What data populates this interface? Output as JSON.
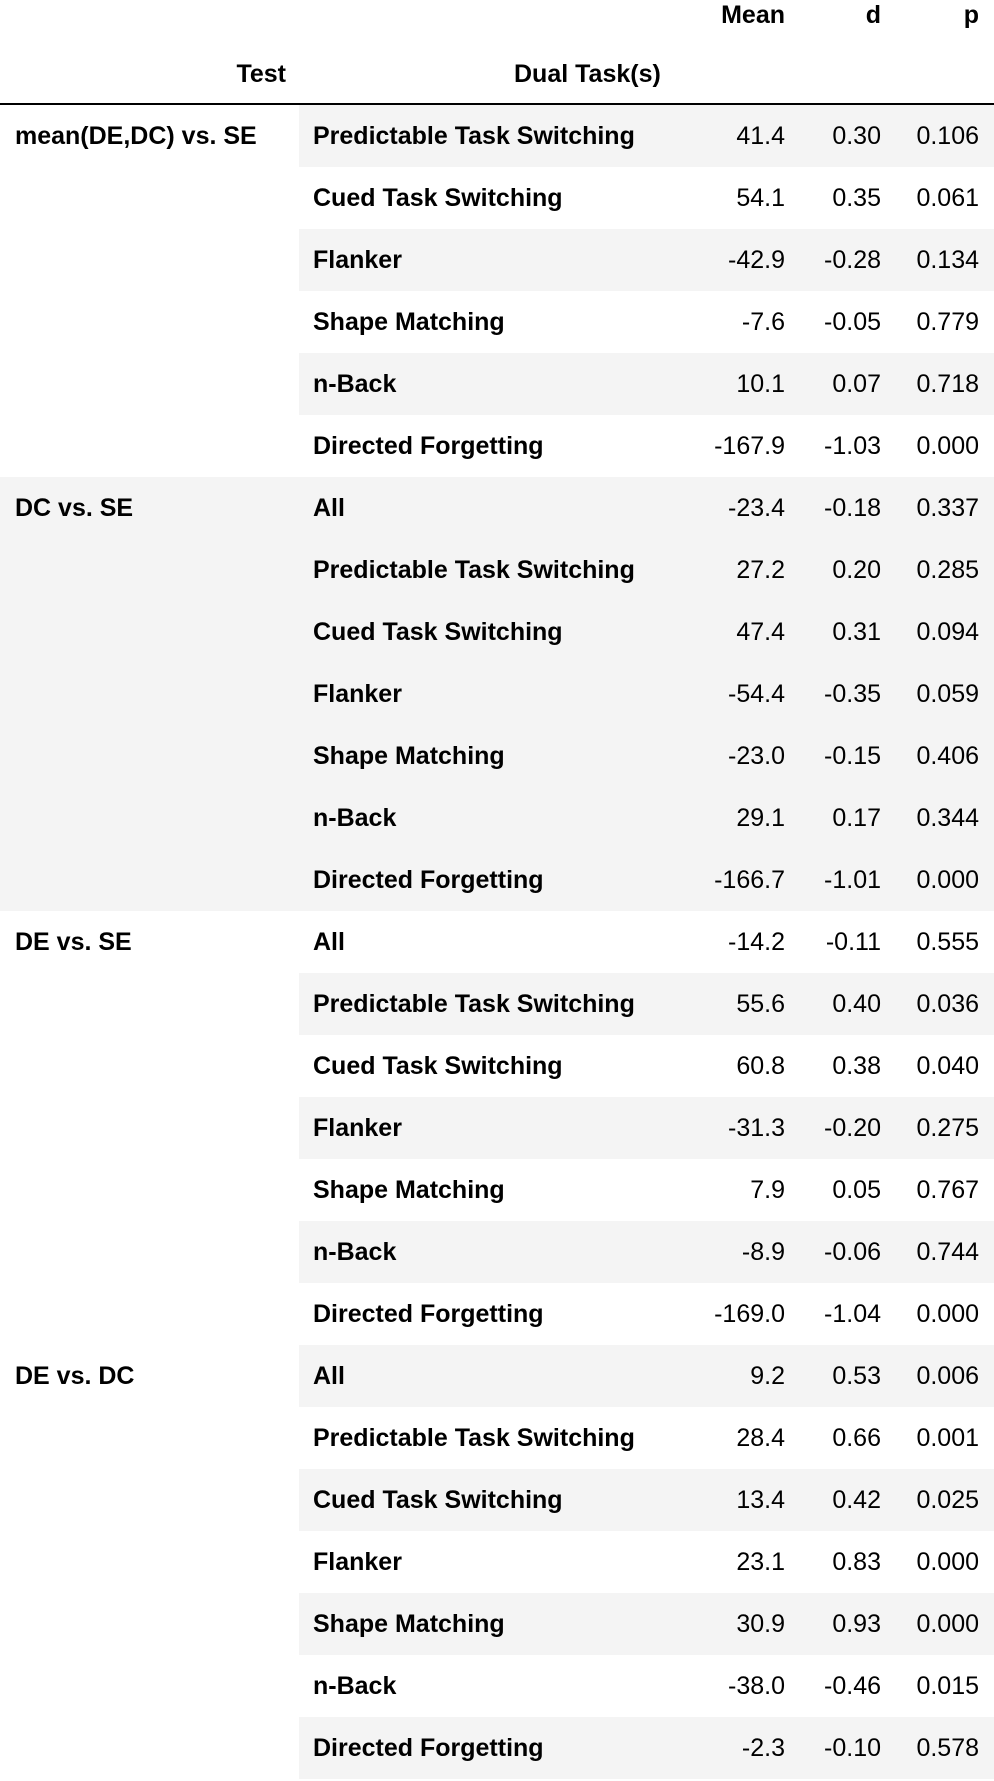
{
  "headers": {
    "mean": "Mean",
    "d": "d",
    "p": "p",
    "test": "Test",
    "dual": "Dual Task(s)"
  },
  "groups": [
    {
      "label": "mean(DE,DC) vs. SE",
      "rows": [
        {
          "task": "Predictable Task Switching",
          "mean": "41.4",
          "d": "0.30",
          "p": "0.106"
        },
        {
          "task": "Cued Task Switching",
          "mean": "54.1",
          "d": "0.35",
          "p": "0.061"
        },
        {
          "task": "Flanker",
          "mean": "-42.9",
          "d": "-0.28",
          "p": "0.134"
        },
        {
          "task": "Shape Matching",
          "mean": "-7.6",
          "d": "-0.05",
          "p": "0.779"
        },
        {
          "task": "n-Back",
          "mean": "10.1",
          "d": "0.07",
          "p": "0.718"
        },
        {
          "task": "Directed Forgetting",
          "mean": "-167.9",
          "d": "-1.03",
          "p": "0.000"
        }
      ]
    },
    {
      "label": "DC vs. SE",
      "rows": [
        {
          "task": "All",
          "mean": "-23.4",
          "d": "-0.18",
          "p": "0.337"
        },
        {
          "task": "Predictable Task Switching",
          "mean": "27.2",
          "d": "0.20",
          "p": "0.285"
        },
        {
          "task": "Cued Task Switching",
          "mean": "47.4",
          "d": "0.31",
          "p": "0.094"
        },
        {
          "task": "Flanker",
          "mean": "-54.4",
          "d": "-0.35",
          "p": "0.059"
        },
        {
          "task": "Shape Matching",
          "mean": "-23.0",
          "d": "-0.15",
          "p": "0.406"
        },
        {
          "task": "n-Back",
          "mean": "29.1",
          "d": "0.17",
          "p": "0.344"
        },
        {
          "task": "Directed Forgetting",
          "mean": "-166.7",
          "d": "-1.01",
          "p": "0.000"
        }
      ]
    },
    {
      "label": "DE vs. SE",
      "rows": [
        {
          "task": "All",
          "mean": "-14.2",
          "d": "-0.11",
          "p": "0.555"
        },
        {
          "task": "Predictable Task Switching",
          "mean": "55.6",
          "d": "0.40",
          "p": "0.036"
        },
        {
          "task": "Cued Task Switching",
          "mean": "60.8",
          "d": "0.38",
          "p": "0.040"
        },
        {
          "task": "Flanker",
          "mean": "-31.3",
          "d": "-0.20",
          "p": "0.275"
        },
        {
          "task": "Shape Matching",
          "mean": "7.9",
          "d": "0.05",
          "p": "0.767"
        },
        {
          "task": "n-Back",
          "mean": "-8.9",
          "d": "-0.06",
          "p": "0.744"
        },
        {
          "task": "Directed Forgetting",
          "mean": "-169.0",
          "d": "-1.04",
          "p": "0.000"
        }
      ]
    },
    {
      "label": "DE vs. DC",
      "rows": [
        {
          "task": "All",
          "mean": "9.2",
          "d": "0.53",
          "p": "0.006"
        },
        {
          "task": "Predictable Task Switching",
          "mean": "28.4",
          "d": "0.66",
          "p": "0.001"
        },
        {
          "task": "Cued Task Switching",
          "mean": "13.4",
          "d": "0.42",
          "p": "0.025"
        },
        {
          "task": "Flanker",
          "mean": "23.1",
          "d": "0.83",
          "p": "0.000"
        },
        {
          "task": "Shape Matching",
          "mean": "30.9",
          "d": "0.93",
          "p": "0.000"
        },
        {
          "task": "n-Back",
          "mean": "-38.0",
          "d": "-0.46",
          "p": "0.015"
        },
        {
          "task": "Directed Forgetting",
          "mean": "-2.3",
          "d": "-0.10",
          "p": "0.578"
        }
      ]
    }
  ]
}
